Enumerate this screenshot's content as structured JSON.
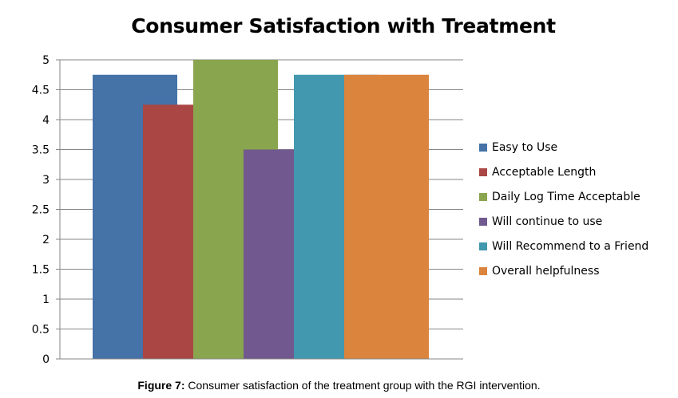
{
  "chart_data": {
    "type": "bar",
    "title": "Consumer Satisfaction with Treatment",
    "xlabel": "",
    "ylabel": "",
    "ylim": [
      0,
      5
    ],
    "yticks": [
      "0",
      "0.5",
      "1",
      "1.5",
      "2",
      "2.5",
      "3",
      "3.5",
      "4",
      "4.5",
      "5"
    ],
    "grid": true,
    "legend_position": "right",
    "categories": [
      ""
    ],
    "series": [
      {
        "name": "Easy to Use",
        "values": [
          4.75
        ],
        "color": "#4572A7"
      },
      {
        "name": "Acceptable Length",
        "values": [
          4.25
        ],
        "color": "#AA4643"
      },
      {
        "name": "Daily Log Time Acceptable",
        "values": [
          5
        ],
        "color": "#89A54E"
      },
      {
        "name": "Will continue to use",
        "values": [
          3.5
        ],
        "color": "#71588F"
      },
      {
        "name": "Will Recommend to a Friend",
        "values": [
          4.75
        ],
        "color": "#4198AF"
      },
      {
        "name": "Overall helpfulness",
        "values": [
          4.75
        ],
        "color": "#DB843D"
      }
    ]
  },
  "caption": {
    "label": "Figure 7:",
    "text": " Consumer satisfaction of the treatment group with the RGI intervention."
  }
}
